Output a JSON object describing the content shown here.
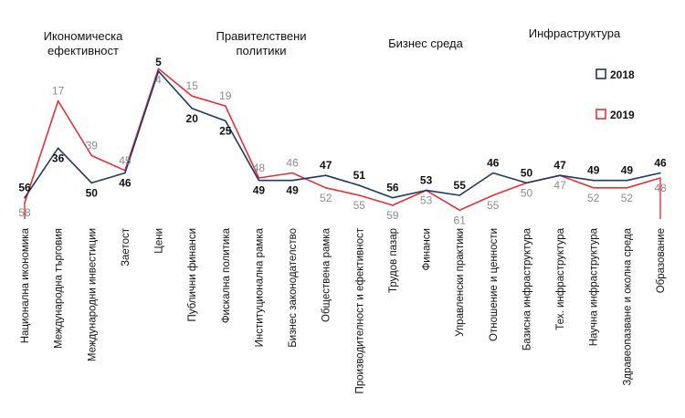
{
  "chart_data": {
    "type": "line",
    "groups": [
      "Икономическа\nефективност",
      "Правителствени\nполитики",
      "Бизнес среда",
      "Инфраструктура"
    ],
    "categories": [
      "Национална икономика",
      "Международна търговия",
      "Международни инвестиции",
      "Заетост",
      "Цени",
      "Публични финанси",
      "Фискална политика",
      "Институционална рамка",
      "Бизнес законодателство",
      "Обществена рамка",
      "Производителност и ефективност",
      "Трудов пазар",
      "Финанси",
      "Управленски практики",
      "Отношение и ценности",
      "Базисна инфраструктура",
      "Тех. инфраструктура",
      "Научна инфраструктура",
      "Здравеопазване и околна среда",
      "Образование"
    ],
    "series": [
      {
        "name": "2018",
        "color": "#1f3864",
        "values": [
          56,
          36,
          50,
          46,
          5,
          20,
          25,
          49,
          49,
          47,
          51,
          56,
          53,
          55,
          46,
          50,
          47,
          49,
          49,
          46
        ]
      },
      {
        "name": "2019",
        "color": "#e8303a",
        "values": [
          58,
          17,
          39,
          45,
          4,
          15,
          19,
          48,
          46,
          52,
          55,
          59,
          53,
          61,
          55,
          50,
          47,
          52,
          52,
          48
        ]
      }
    ],
    "axes_visible": false,
    "grid": false,
    "legend": "right"
  }
}
